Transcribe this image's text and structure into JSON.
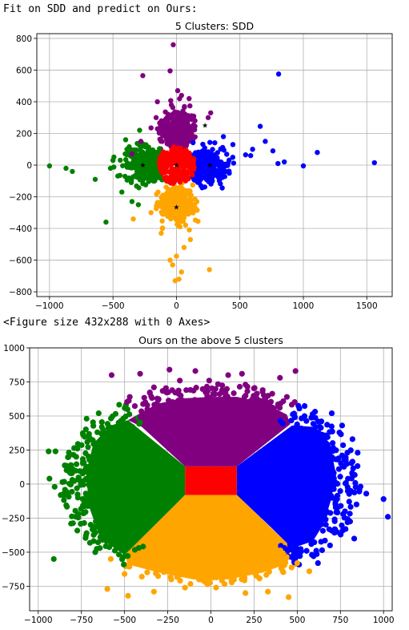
{
  "cells": {
    "header_output": "Fit on SDD and predict on Ours:",
    "figure_size_output": "<Figure size 432x288 with 0 Axes>"
  },
  "colors": {
    "purple": "#800080",
    "blue": "#0000ff",
    "red": "#ff0000",
    "orange": "#ffa500",
    "green": "#008000",
    "centroid": "#000000"
  },
  "chart_data": [
    {
      "type": "scatter",
      "title": "5 Clusters: SDD",
      "xlim": [
        -1100,
        1700
      ],
      "ylim": [
        -830,
        830
      ],
      "xticks": [
        -1000,
        -500,
        0,
        500,
        1000,
        1500
      ],
      "yticks": [
        -800,
        -600,
        -400,
        -200,
        0,
        200,
        400,
        600,
        800
      ],
      "grid": true,
      "centroids": [
        [
          -265,
          0
        ],
        [
          225,
          250
        ],
        [
          265,
          0
        ],
        [
          0,
          -265
        ],
        [
          0,
          0
        ]
      ],
      "clusters": [
        {
          "color": "purple",
          "region": "top",
          "points": [
            [
              -25,
              760
            ],
            [
              -265,
              565
            ],
            [
              -50,
              595
            ],
            [
              -350,
              70
            ],
            [
              -280,
              150
            ],
            [
              270,
              330
            ],
            [
              -200,
              235
            ],
            [
              250,
              300
            ],
            [
              -150,
              400
            ],
            [
              100,
              420
            ],
            [
              40,
              440
            ],
            [
              -40,
              380
            ],
            [
              -160,
              300
            ],
            [
              10,
              470
            ]
          ]
        },
        {
          "color": "blue",
          "region": "right",
          "points": [
            [
              805,
              575
            ],
            [
              660,
              245
            ],
            [
              1110,
              80
            ],
            [
              1560,
              15
            ],
            [
              1000,
              -5
            ],
            [
              800,
              10
            ],
            [
              600,
              100
            ],
            [
              585,
              60
            ],
            [
              445,
              130
            ],
            [
              545,
              65
            ],
            [
              760,
              90
            ],
            [
              850,
              20
            ],
            [
              700,
              150
            ],
            [
              370,
              180
            ]
          ]
        },
        {
          "color": "green",
          "region": "left",
          "points": [
            [
              -1000,
              -5
            ],
            [
              -870,
              -20
            ],
            [
              -640,
              -90
            ],
            [
              -520,
              -20
            ],
            [
              -445,
              -65
            ],
            [
              -820,
              -40
            ],
            [
              -500,
              30
            ],
            [
              -390,
              100
            ],
            [
              -430,
              -170
            ],
            [
              -350,
              -230
            ],
            [
              -555,
              -360
            ],
            [
              -400,
              160
            ],
            [
              -290,
              220
            ],
            [
              -300,
              -250
            ]
          ]
        },
        {
          "color": "orange",
          "region": "bottom",
          "points": [
            [
              -10,
              -730
            ],
            [
              40,
              -675
            ],
            [
              -50,
              -600
            ],
            [
              260,
              -660
            ],
            [
              -120,
              -430
            ],
            [
              -340,
              -340
            ],
            [
              -200,
              -300
            ],
            [
              170,
              -355
            ],
            [
              60,
              -520
            ],
            [
              -30,
              -630
            ],
            [
              20,
              -720
            ],
            [
              -110,
              -400
            ],
            [
              110,
              -470
            ],
            [
              0,
              -575
            ]
          ]
        },
        {
          "color": "red",
          "region": "center",
          "points": []
        }
      ]
    },
    {
      "type": "scatter",
      "title": "Ours on the above 5 clusters",
      "xlim": [
        -1050,
        1050
      ],
      "ylim": [
        -930,
        1000
      ],
      "xticks": [
        -1000,
        -750,
        -500,
        -250,
        0,
        250,
        500,
        750,
        1000
      ],
      "yticks": [
        -750,
        -500,
        -250,
        0,
        250,
        500,
        750,
        1000
      ],
      "grid": true,
      "clusters": [
        {
          "color": "purple",
          "region": "top",
          "points": [
            [
              -575,
              800
            ],
            [
              -410,
              810
            ],
            [
              -240,
              840
            ],
            [
              -90,
              830
            ],
            [
              100,
              800
            ],
            [
              180,
              810
            ],
            [
              400,
              780
            ],
            [
              490,
              830
            ],
            [
              -470,
              640
            ],
            [
              -330,
              710
            ],
            [
              -180,
              760
            ],
            [
              -10,
              760
            ],
            [
              200,
              730
            ],
            [
              300,
              690
            ],
            [
              440,
              640
            ],
            [
              -380,
              600
            ]
          ]
        },
        {
          "color": "blue",
          "region": "right",
          "points": [
            [
              1000,
              -110
            ],
            [
              1025,
              -240
            ],
            [
              900,
              -70
            ],
            [
              850,
              230
            ],
            [
              760,
              430
            ],
            [
              820,
              330
            ],
            [
              700,
              520
            ],
            [
              810,
              -50
            ],
            [
              730,
              -180
            ],
            [
              780,
              -330
            ],
            [
              690,
              -450
            ],
            [
              620,
              -580
            ],
            [
              830,
              -400
            ],
            [
              760,
              210
            ],
            [
              640,
              460
            ]
          ]
        },
        {
          "color": "green",
          "region": "left",
          "points": [
            [
              -935,
              40
            ],
            [
              -905,
              -20
            ],
            [
              -820,
              90
            ],
            [
              -900,
              240
            ],
            [
              -870,
              -80
            ],
            [
              -910,
              -550
            ],
            [
              -810,
              -290
            ],
            [
              -720,
              -360
            ],
            [
              -740,
              360
            ],
            [
              -720,
              480
            ],
            [
              -650,
              520
            ],
            [
              -940,
              240
            ],
            [
              -830,
              -80
            ],
            [
              -670,
              -500
            ],
            [
              -780,
              200
            ]
          ]
        },
        {
          "color": "orange",
          "region": "bottom",
          "points": [
            [
              -600,
              -770
            ],
            [
              -480,
              -820
            ],
            [
              -330,
              -790
            ],
            [
              -150,
              -760
            ],
            [
              30,
              -760
            ],
            [
              200,
              -800
            ],
            [
              330,
              -790
            ],
            [
              450,
              -830
            ],
            [
              570,
              -640
            ],
            [
              500,
              -580
            ],
            [
              -500,
              -660
            ],
            [
              -400,
              -680
            ],
            [
              -230,
              -700
            ],
            [
              120,
              -710
            ],
            [
              280,
              -690
            ],
            [
              -580,
              -550
            ]
          ]
        },
        {
          "color": "red",
          "region": "center",
          "points": []
        }
      ]
    }
  ]
}
